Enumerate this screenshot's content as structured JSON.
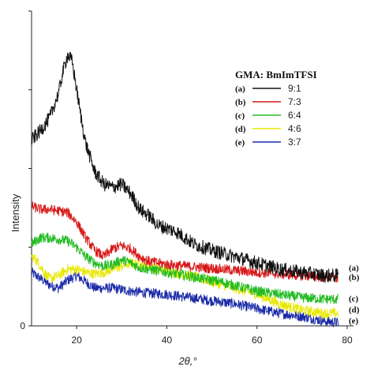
{
  "chart_data": {
    "type": "line",
    "title": "",
    "xlabel": "2θ,°",
    "ylabel": "Intensity",
    "xlim": [
      10,
      80
    ],
    "ylim": [
      0,
      100
    ],
    "xticks": [
      20,
      40,
      60,
      80
    ],
    "yticks": [
      0
    ],
    "y_tick_labels_shown": [
      "0"
    ],
    "grid": false,
    "legend": {
      "title": "GMA: BmImTFSI",
      "placement": "top-right",
      "entries": [
        {
          "key": "(a)",
          "ratio": "9:1",
          "color": "#111111"
        },
        {
          "key": "(b)",
          "ratio": "7:3",
          "color": "#d81818"
        },
        {
          "key": "(c)",
          "ratio": "6:4",
          "color": "#22bb22"
        },
        {
          "key": "(d)",
          "ratio": "4:6",
          "color": "#e8e800"
        },
        {
          "key": "(e)",
          "ratio": "3:7",
          "color": "#1a2aa8"
        }
      ]
    },
    "series": [
      {
        "key": "(a)",
        "color": "#111111",
        "x": [
          10,
          12,
          14,
          16,
          17,
          18,
          19,
          20,
          21,
          22,
          24,
          26,
          28,
          30,
          32,
          34,
          36,
          38,
          40,
          42,
          44,
          46,
          50,
          55,
          60,
          65,
          70,
          75,
          78
        ],
        "values": [
          59,
          62,
          66,
          74,
          81,
          86,
          84,
          75,
          66,
          58,
          49,
          45,
          44,
          45,
          42,
          37,
          35,
          32,
          31,
          30,
          28,
          26,
          24,
          22,
          20,
          18,
          17,
          16,
          16
        ]
      },
      {
        "key": "(b)",
        "color": "#d81818",
        "x": [
          10,
          12,
          14,
          16,
          18,
          20,
          22,
          24,
          26,
          28,
          30,
          32,
          34,
          36,
          38,
          40,
          44,
          48,
          52,
          56,
          60,
          65,
          70,
          75,
          78
        ],
        "values": [
          38,
          37,
          37,
          36.5,
          36,
          33,
          28,
          24,
          22,
          24.5,
          25.5,
          24.5,
          22,
          20.5,
          20,
          19.5,
          19,
          18.5,
          18,
          17.5,
          17,
          16.5,
          16,
          15.5,
          15
        ]
      },
      {
        "key": "(c)",
        "color": "#22bb22",
        "x": [
          10,
          12,
          14,
          16,
          18,
          20,
          22,
          24,
          26,
          28,
          30,
          32,
          34,
          36,
          40,
          44,
          48,
          52,
          56,
          60,
          65,
          70,
          75,
          78
        ],
        "values": [
          26,
          28,
          28,
          27.5,
          27,
          25,
          22,
          20,
          19,
          19.5,
          21,
          20,
          18.5,
          18,
          17,
          16,
          15,
          14,
          12.5,
          11,
          10,
          9,
          8.5,
          8.5
        ]
      },
      {
        "key": "(d)",
        "color": "#e8e800",
        "x": [
          10,
          11,
          12,
          13,
          14,
          16,
          18,
          20,
          22,
          24,
          26,
          28,
          30,
          32,
          35,
          40,
          45,
          50,
          55,
          60,
          65,
          70,
          75,
          78
        ],
        "values": [
          22,
          21,
          19,
          16.5,
          15,
          16,
          18,
          18,
          17,
          16.5,
          17,
          18,
          19,
          20,
          19,
          17.5,
          16,
          14,
          12,
          10,
          7,
          5,
          4,
          4
        ]
      },
      {
        "key": "(e)",
        "color": "#1a2aa8",
        "x": [
          10,
          12,
          14,
          16,
          18,
          20,
          22,
          24,
          26,
          28,
          30,
          32,
          35,
          40,
          45,
          50,
          55,
          60,
          65,
          70,
          75,
          78
        ],
        "values": [
          17,
          15,
          13,
          12,
          14.5,
          16,
          14,
          12,
          12,
          12,
          11.5,
          11,
          10.5,
          10,
          9,
          8,
          7,
          5.5,
          4,
          3,
          1.5,
          1
        ]
      }
    ],
    "end_labels": [
      "(a)",
      "(b)",
      "(c)",
      "(d)",
      "(e)"
    ]
  }
}
